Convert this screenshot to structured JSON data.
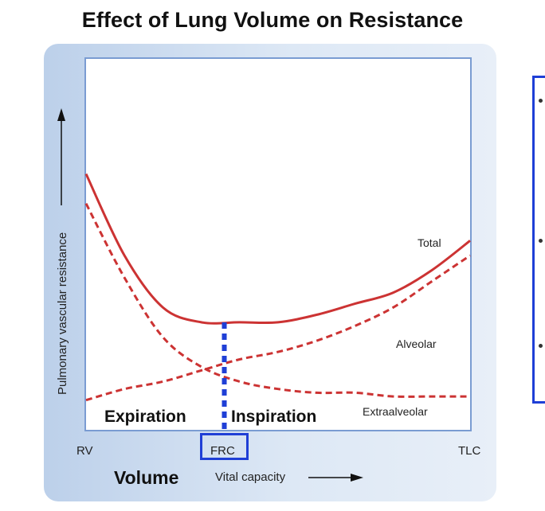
{
  "chart_data": {
    "type": "line",
    "title": "Effect of Lung Volume on Resistance",
    "xlabel": "Volume",
    "x_sublabel": "Vital capacity",
    "ylabel": "Pulmonary vascular resistance",
    "x": [
      0,
      0.1,
      0.2,
      0.3,
      0.4,
      0.5,
      0.6,
      0.7,
      0.8,
      0.9,
      1.0
    ],
    "x_tick_labels": [
      {
        "pos": 0,
        "label": "RV"
      },
      {
        "pos": 0.36,
        "label": "FRC"
      },
      {
        "pos": 1.0,
        "label": "TLC"
      }
    ],
    "xlim": [
      0,
      1
    ],
    "ylim": [
      0,
      1
    ],
    "series": [
      {
        "name": "Total",
        "style": "solid",
        "values": [
          0.69,
          0.47,
          0.33,
          0.29,
          0.29,
          0.29,
          0.31,
          0.34,
          0.37,
          0.43,
          0.51
        ]
      },
      {
        "name": "Alveolar",
        "style": "dashed",
        "values": [
          0.08,
          0.11,
          0.13,
          0.16,
          0.19,
          0.21,
          0.24,
          0.28,
          0.33,
          0.4,
          0.47
        ]
      },
      {
        "name": "Extraalveolar",
        "style": "dashed",
        "values": [
          0.61,
          0.41,
          0.25,
          0.17,
          0.13,
          0.11,
          0.1,
          0.1,
          0.09,
          0.09,
          0.09
        ]
      }
    ],
    "series_labels": [
      "Total",
      "Alveolar",
      "Extraalveolar"
    ],
    "frc_marker": {
      "x": 0.36,
      "label": "FRC"
    },
    "regions": {
      "left": "Expiration",
      "right": "Inspiration"
    },
    "colors": {
      "curves": "#cc3333",
      "frc": "#1f3fd6",
      "frame": "#7a9cd2"
    }
  },
  "side_panel": {
    "bullets": [
      "•",
      "•",
      "•"
    ]
  }
}
